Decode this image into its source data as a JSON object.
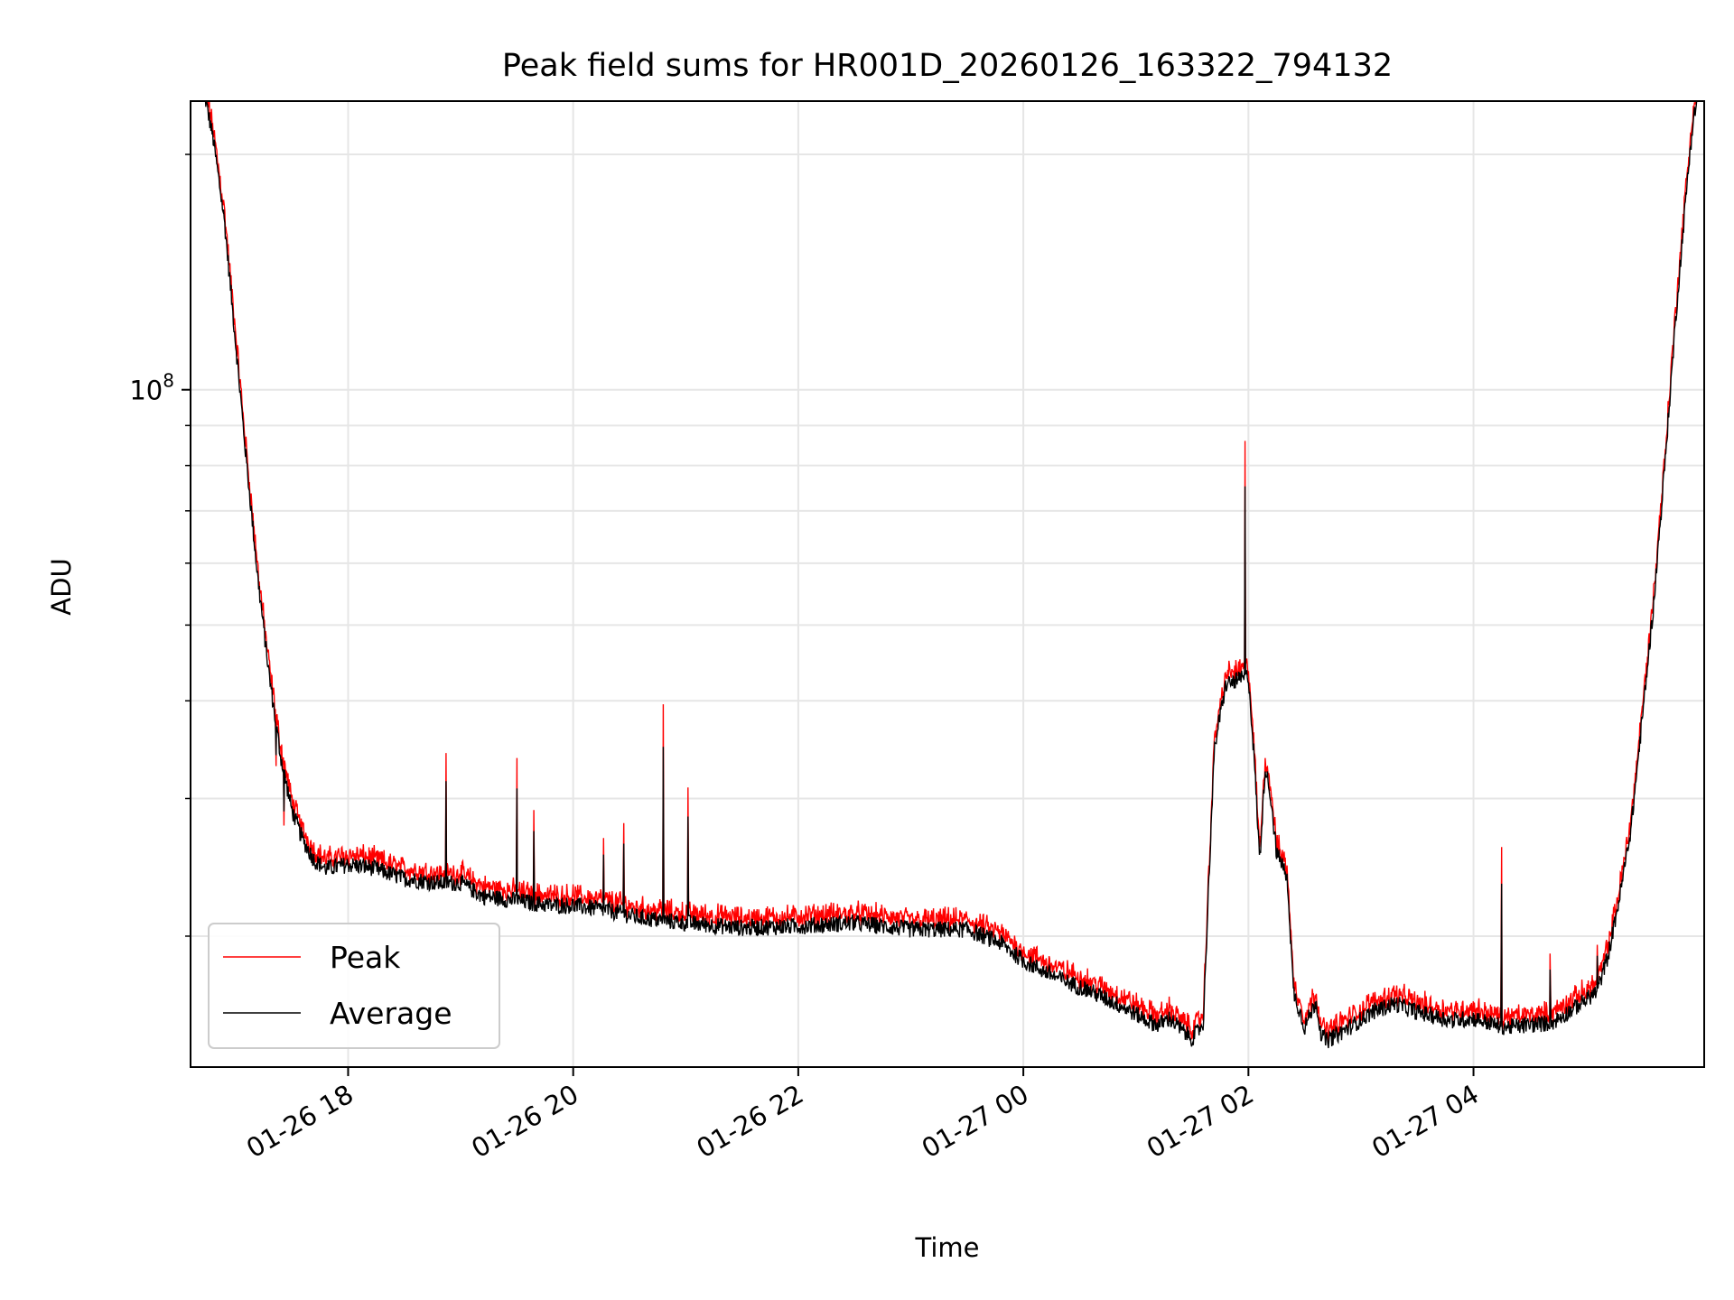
{
  "chart_data": {
    "type": "line",
    "title": "Peak field sums for HR001D_20260126_163322_794132",
    "xlabel": "Time",
    "ylabel": "ADU",
    "yscale": "log",
    "ylim": [
      13600000,
      234000000
    ],
    "xlim": [
      16.6,
      30.05
    ],
    "x_unit": "hours since 01-26 00:00",
    "x_ticks": [
      {
        "value": 18,
        "label": "01-26 18"
      },
      {
        "value": 20,
        "label": "01-26 20"
      },
      {
        "value": 22,
        "label": "01-26 22"
      },
      {
        "value": 24,
        "label": "01-27 00"
      },
      {
        "value": 26,
        "label": "01-27 02"
      },
      {
        "value": 28,
        "label": "01-27 04"
      }
    ],
    "y_major_ticks": [
      {
        "value": 100000000,
        "base": "10",
        "exp": "8"
      }
    ],
    "y_minor_ticks": [
      20000000,
      30000000,
      40000000,
      50000000,
      60000000,
      70000000,
      80000000,
      90000000,
      200000000
    ],
    "grid": true,
    "legend": {
      "position": "lower-left",
      "entries": [
        "Peak",
        "Average"
      ]
    },
    "colors": {
      "Peak": "#ff0000",
      "Average": "#000000"
    },
    "series": [
      {
        "name": "Average",
        "x": [
          16.72,
          16.8,
          16.9,
          17.0,
          17.1,
          17.2,
          17.3,
          17.4,
          17.5,
          17.6,
          17.7,
          17.8,
          18.0,
          18.2,
          18.5,
          18.8,
          19.0,
          19.2,
          19.5,
          19.8,
          20.0,
          20.3,
          20.6,
          21.0,
          21.5,
          22.0,
          22.5,
          23.0,
          23.5,
          23.8,
          24.0,
          24.3,
          24.6,
          24.9,
          25.1,
          25.2,
          25.3,
          25.4,
          25.5,
          25.55,
          25.6,
          25.65,
          25.7,
          25.8,
          25.9,
          26.0,
          26.05,
          26.1,
          26.15,
          26.2,
          26.25,
          26.3,
          26.35,
          26.4,
          26.5,
          26.6,
          26.65,
          26.7,
          26.9,
          27.1,
          27.3,
          27.5,
          27.8,
          28.0,
          28.2,
          28.3,
          28.5,
          28.7,
          28.9,
          29.1,
          29.2,
          29.3,
          29.4,
          29.5,
          29.6,
          29.7,
          29.8,
          29.9,
          29.95,
          30.0
        ],
        "values": [
          240000000,
          210000000,
          165000000,
          115000000,
          80000000,
          57000000,
          43000000,
          34000000,
          29000000,
          26500000,
          25000000,
          24400000,
          24700000,
          24500000,
          23700000,
          23400000,
          23400000,
          22500000,
          22200000,
          21900000,
          21900000,
          21600000,
          21100000,
          20800000,
          20500000,
          20600000,
          20800000,
          20400000,
          20400000,
          19600000,
          18600000,
          17700000,
          17000000,
          16200000,
          15600000,
          15400000,
          15700000,
          15200000,
          14800000,
          15100000,
          15500000,
          24000000,
          35000000,
          42000000,
          42500000,
          43000000,
          34000000,
          25000000,
          33000000,
          30000000,
          25500000,
          24800000,
          23300000,
          17000000,
          15300000,
          16500000,
          14900000,
          14700000,
          15300000,
          16000000,
          16400000,
          16000000,
          15600000,
          15700000,
          15400000,
          15300000,
          15400000,
          15500000,
          16200000,
          17000000,
          19000000,
          22500000,
          27500000,
          38000000,
          53000000,
          80000000,
          125000000,
          185000000,
          220000000,
          240000000
        ]
      },
      {
        "name": "Peak",
        "spikes": [
          {
            "x": 17.36,
            "value": 33000000
          },
          {
            "x": 17.43,
            "value": 27700000
          },
          {
            "x": 18.87,
            "value": 34300000
          },
          {
            "x": 19.5,
            "value": 33800000
          },
          {
            "x": 19.65,
            "value": 29000000
          },
          {
            "x": 20.27,
            "value": 26700000
          },
          {
            "x": 20.45,
            "value": 27900000
          },
          {
            "x": 20.8,
            "value": 39600000
          },
          {
            "x": 21.02,
            "value": 31000000
          },
          {
            "x": 25.97,
            "value": 86000000
          },
          {
            "x": 28.25,
            "value": 26000000
          },
          {
            "x": 28.68,
            "value": 19000000
          },
          {
            "x": 29.1,
            "value": 19500000
          }
        ]
      }
    ]
  }
}
